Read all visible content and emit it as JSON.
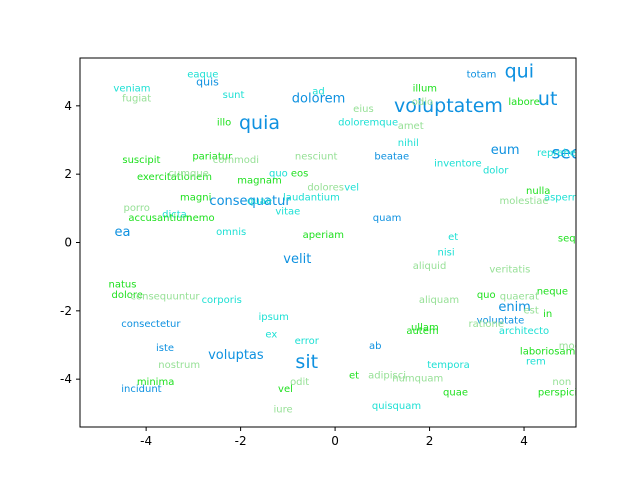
{
  "chart_data": {
    "type": "scatter",
    "title": "",
    "xlabel": "",
    "ylabel": "",
    "xlim": [
      -5.4,
      5.1
    ],
    "ylim": [
      -5.4,
      5.4
    ],
    "xticks": [
      -4,
      -2,
      0,
      2,
      4
    ],
    "yticks": [
      -4,
      -2,
      0,
      2,
      4
    ],
    "grid": false,
    "colors": {
      "blue": "#0e91e0",
      "cyan": "#1ee0d4",
      "green": "#1ee01e",
      "lightgreen": "#96e096"
    },
    "points": [
      {
        "text": "qui",
        "x": 3.9,
        "y": 5.0,
        "size": 19,
        "color": "blue"
      },
      {
        "text": "ut",
        "x": 4.5,
        "y": 4.2,
        "size": 19,
        "color": "blue"
      },
      {
        "text": "voluptatem",
        "x": 2.4,
        "y": 4.0,
        "size": 19,
        "color": "blue"
      },
      {
        "text": "quia",
        "x": -1.6,
        "y": 3.5,
        "size": 19,
        "color": "blue"
      },
      {
        "text": "sit",
        "x": -0.6,
        "y": -3.5,
        "size": 19,
        "color": "blue"
      },
      {
        "text": "sed",
        "x": 4.9,
        "y": 2.6,
        "size": 17,
        "color": "blue"
      },
      {
        "text": "dolorem",
        "x": -0.35,
        "y": 4.2,
        "size": 13,
        "color": "blue"
      },
      {
        "text": "eum",
        "x": 3.6,
        "y": 2.7,
        "size": 13,
        "color": "blue"
      },
      {
        "text": "enim",
        "x": 3.8,
        "y": -1.9,
        "size": 13,
        "color": "blue"
      },
      {
        "text": "consequatur",
        "x": -1.8,
        "y": 1.2,
        "size": 13,
        "color": "blue"
      },
      {
        "text": "velit",
        "x": -0.8,
        "y": -0.5,
        "size": 13,
        "color": "blue"
      },
      {
        "text": "voluptas",
        "x": -2.1,
        "y": -3.3,
        "size": 13,
        "color": "blue"
      },
      {
        "text": "ea",
        "x": -4.5,
        "y": 0.3,
        "size": 13,
        "color": "blue"
      },
      {
        "text": "quis",
        "x": -2.7,
        "y": 4.7,
        "size": 11,
        "color": "blue"
      },
      {
        "text": "totam",
        "x": 3.1,
        "y": 4.9,
        "size": 10,
        "color": "blue"
      },
      {
        "text": "beatae",
        "x": 1.2,
        "y": 2.5,
        "size": 10,
        "color": "blue"
      },
      {
        "text": "quam",
        "x": 1.1,
        "y": 0.7,
        "size": 10,
        "color": "blue"
      },
      {
        "text": "consectetur",
        "x": -3.9,
        "y": -2.4,
        "size": 10,
        "color": "blue"
      },
      {
        "text": "iste",
        "x": -3.6,
        "y": -3.1,
        "size": 10,
        "color": "blue"
      },
      {
        "text": "incidunt",
        "x": -4.1,
        "y": -4.3,
        "size": 10,
        "color": "blue"
      },
      {
        "text": "ab",
        "x": 0.85,
        "y": -3.05,
        "size": 10,
        "color": "blue"
      },
      {
        "text": "voluptate",
        "x": 3.5,
        "y": -2.3,
        "size": 10,
        "color": "blue"
      },
      {
        "text": "veniam",
        "x": -4.3,
        "y": 4.5,
        "size": 10,
        "color": "cyan"
      },
      {
        "text": "eaque",
        "x": -2.8,
        "y": 4.9,
        "size": 10,
        "color": "cyan"
      },
      {
        "text": "sunt",
        "x": -2.15,
        "y": 4.3,
        "size": 10,
        "color": "cyan"
      },
      {
        "text": "ad",
        "x": -0.35,
        "y": 4.4,
        "size": 10,
        "color": "cyan"
      },
      {
        "text": "doloremque",
        "x": 0.7,
        "y": 3.5,
        "size": 10,
        "color": "cyan"
      },
      {
        "text": "nihil",
        "x": 1.55,
        "y": 2.9,
        "size": 10,
        "color": "cyan"
      },
      {
        "text": "inventore",
        "x": 2.6,
        "y": 2.3,
        "size": 10,
        "color": "cyan"
      },
      {
        "text": "dolor",
        "x": 3.4,
        "y": 2.1,
        "size": 10,
        "color": "cyan"
      },
      {
        "text": "reprehenderit",
        "x": 5.0,
        "y": 2.6,
        "size": 10,
        "color": "cyan"
      },
      {
        "text": "aspernatur",
        "x": 5.0,
        "y": 1.3,
        "size": 10,
        "color": "cyan"
      },
      {
        "text": "quo",
        "x": -1.2,
        "y": 2.0,
        "size": 10,
        "color": "cyan"
      },
      {
        "text": "vel",
        "x": 0.35,
        "y": 1.6,
        "size": 10,
        "color": "cyan"
      },
      {
        "text": "laudantium",
        "x": -0.5,
        "y": 1.3,
        "size": 10,
        "color": "cyan"
      },
      {
        "text": "quae",
        "x": -1.6,
        "y": 1.2,
        "size": 10,
        "color": "cyan"
      },
      {
        "text": "vitae",
        "x": -1.0,
        "y": 0.9,
        "size": 10,
        "color": "cyan"
      },
      {
        "text": "dicta",
        "x": -3.4,
        "y": 0.8,
        "size": 10,
        "color": "cyan"
      },
      {
        "text": "omnis",
        "x": -2.2,
        "y": 0.3,
        "size": 10,
        "color": "cyan"
      },
      {
        "text": "et",
        "x": 2.5,
        "y": 0.15,
        "size": 10,
        "color": "cyan"
      },
      {
        "text": "nisi",
        "x": 2.35,
        "y": -0.3,
        "size": 10,
        "color": "cyan"
      },
      {
        "text": "corporis",
        "x": -2.4,
        "y": -1.7,
        "size": 10,
        "color": "cyan"
      },
      {
        "text": "ipsum",
        "x": -1.3,
        "y": -2.2,
        "size": 10,
        "color": "cyan"
      },
      {
        "text": "ex",
        "x": -1.35,
        "y": -2.7,
        "size": 10,
        "color": "cyan"
      },
      {
        "text": "error",
        "x": -0.6,
        "y": -2.9,
        "size": 10,
        "color": "cyan"
      },
      {
        "text": "architecto",
        "x": 4.0,
        "y": -2.6,
        "size": 10,
        "color": "cyan"
      },
      {
        "text": "rem",
        "x": 4.25,
        "y": -3.5,
        "size": 10,
        "color": "cyan"
      },
      {
        "text": "tempora",
        "x": 2.4,
        "y": -3.6,
        "size": 10,
        "color": "cyan"
      },
      {
        "text": "quisquam",
        "x": 1.3,
        "y": -4.8,
        "size": 10,
        "color": "cyan"
      },
      {
        "text": "illum",
        "x": 1.9,
        "y": 4.5,
        "size": 10,
        "color": "green"
      },
      {
        "text": "labore",
        "x": 4.0,
        "y": 4.1,
        "size": 10,
        "color": "green"
      },
      {
        "text": "illo",
        "x": -2.35,
        "y": 3.5,
        "size": 10,
        "color": "green"
      },
      {
        "text": "suscipit",
        "x": -4.1,
        "y": 2.4,
        "size": 10,
        "color": "green"
      },
      {
        "text": "pariatur",
        "x": -2.6,
        "y": 2.5,
        "size": 10,
        "color": "green"
      },
      {
        "text": "exercitationem",
        "x": -3.4,
        "y": 1.9,
        "size": 10,
        "color": "green"
      },
      {
        "text": "magnam",
        "x": -1.6,
        "y": 1.8,
        "size": 10,
        "color": "green"
      },
      {
        "text": "eos",
        "x": -0.75,
        "y": 2.0,
        "size": 10,
        "color": "green"
      },
      {
        "text": "magni",
        "x": -2.95,
        "y": 1.3,
        "size": 10,
        "color": "green"
      },
      {
        "text": "nulla",
        "x": 4.3,
        "y": 1.5,
        "size": 10,
        "color": "green"
      },
      {
        "text": "accusantium",
        "x": -3.7,
        "y": 0.7,
        "size": 10,
        "color": "green"
      },
      {
        "text": "nemo",
        "x": -2.85,
        "y": 0.7,
        "size": 10,
        "color": "green"
      },
      {
        "text": "aperiam",
        "x": -0.25,
        "y": 0.2,
        "size": 10,
        "color": "green"
      },
      {
        "text": "sequi",
        "x": 5.0,
        "y": 0.1,
        "size": 10,
        "color": "green"
      },
      {
        "text": "natus",
        "x": -4.5,
        "y": -1.25,
        "size": 10,
        "color": "green"
      },
      {
        "text": "dolore",
        "x": -4.4,
        "y": -1.55,
        "size": 10,
        "color": "green"
      },
      {
        "text": "quo",
        "x": 3.2,
        "y": -1.55,
        "size": 10,
        "color": "green"
      },
      {
        "text": "neque",
        "x": 4.6,
        "y": -1.45,
        "size": 10,
        "color": "green"
      },
      {
        "text": "ullam",
        "x": 1.9,
        "y": -2.5,
        "size": 10,
        "color": "green"
      },
      {
        "text": "autem",
        "x": 1.85,
        "y": -2.6,
        "size": 10,
        "color": "green"
      },
      {
        "text": "in",
        "x": 4.5,
        "y": -2.1,
        "size": 10,
        "color": "green"
      },
      {
        "text": "laboriosam",
        "x": 4.5,
        "y": -3.2,
        "size": 10,
        "color": "green"
      },
      {
        "text": "minima",
        "x": -3.8,
        "y": -4.1,
        "size": 10,
        "color": "green"
      },
      {
        "text": "vel",
        "x": -1.05,
        "y": -4.3,
        "size": 10,
        "color": "green"
      },
      {
        "text": "et",
        "x": 0.4,
        "y": -3.9,
        "size": 10,
        "color": "green"
      },
      {
        "text": "quae",
        "x": 2.55,
        "y": -4.4,
        "size": 10,
        "color": "green"
      },
      {
        "text": "perspiciatis",
        "x": 4.9,
        "y": -4.4,
        "size": 10,
        "color": "green"
      },
      {
        "text": "fugiat",
        "x": -4.2,
        "y": 4.2,
        "size": 10,
        "color": "lightgreen"
      },
      {
        "text": "eius",
        "x": 0.6,
        "y": 3.9,
        "size": 10,
        "color": "lightgreen"
      },
      {
        "text": "odio",
        "x": 1.85,
        "y": 4.1,
        "size": 10,
        "color": "lightgreen"
      },
      {
        "text": "amet",
        "x": 1.6,
        "y": 3.4,
        "size": 10,
        "color": "lightgreen"
      },
      {
        "text": "commodi",
        "x": -2.1,
        "y": 2.4,
        "size": 10,
        "color": "lightgreen"
      },
      {
        "text": "nesciunt",
        "x": -0.4,
        "y": 2.5,
        "size": 10,
        "color": "lightgreen"
      },
      {
        "text": "cumque",
        "x": -3.1,
        "y": 2.0,
        "size": 10,
        "color": "lightgreen"
      },
      {
        "text": "dolores",
        "x": -0.2,
        "y": 1.6,
        "size": 10,
        "color": "lightgreen"
      },
      {
        "text": "porro",
        "x": -4.2,
        "y": 1.0,
        "size": 10,
        "color": "lightgreen"
      },
      {
        "text": "molestiae",
        "x": 4.0,
        "y": 1.2,
        "size": 10,
        "color": "lightgreen"
      },
      {
        "text": "aliquid",
        "x": 2.0,
        "y": -0.7,
        "size": 10,
        "color": "lightgreen"
      },
      {
        "text": "veritatis",
        "x": 3.7,
        "y": -0.8,
        "size": 10,
        "color": "lightgreen"
      },
      {
        "text": "consequuntur",
        "x": -3.6,
        "y": -1.6,
        "size": 10,
        "color": "lightgreen"
      },
      {
        "text": "aliquam",
        "x": 2.2,
        "y": -1.7,
        "size": 10,
        "color": "lightgreen"
      },
      {
        "text": "quaerat",
        "x": 3.9,
        "y": -1.6,
        "size": 10,
        "color": "lightgreen"
      },
      {
        "text": "est",
        "x": 4.15,
        "y": -2.0,
        "size": 10,
        "color": "lightgreen"
      },
      {
        "text": "ratione",
        "x": 3.2,
        "y": -2.4,
        "size": 10,
        "color": "lightgreen"
      },
      {
        "text": "modi",
        "x": 5.0,
        "y": -3.05,
        "size": 10,
        "color": "lightgreen"
      },
      {
        "text": "nostrum",
        "x": -3.3,
        "y": -3.6,
        "size": 10,
        "color": "lightgreen"
      },
      {
        "text": "odit",
        "x": -0.75,
        "y": -4.1,
        "size": 10,
        "color": "lightgreen"
      },
      {
        "text": "adipisci",
        "x": 1.1,
        "y": -3.9,
        "size": 10,
        "color": "lightgreen"
      },
      {
        "text": "numquam",
        "x": 1.75,
        "y": -4.0,
        "size": 10,
        "color": "lightgreen"
      },
      {
        "text": "non",
        "x": 4.8,
        "y": -4.1,
        "size": 10,
        "color": "lightgreen"
      },
      {
        "text": "iure",
        "x": -1.1,
        "y": -4.9,
        "size": 10,
        "color": "lightgreen"
      }
    ]
  }
}
